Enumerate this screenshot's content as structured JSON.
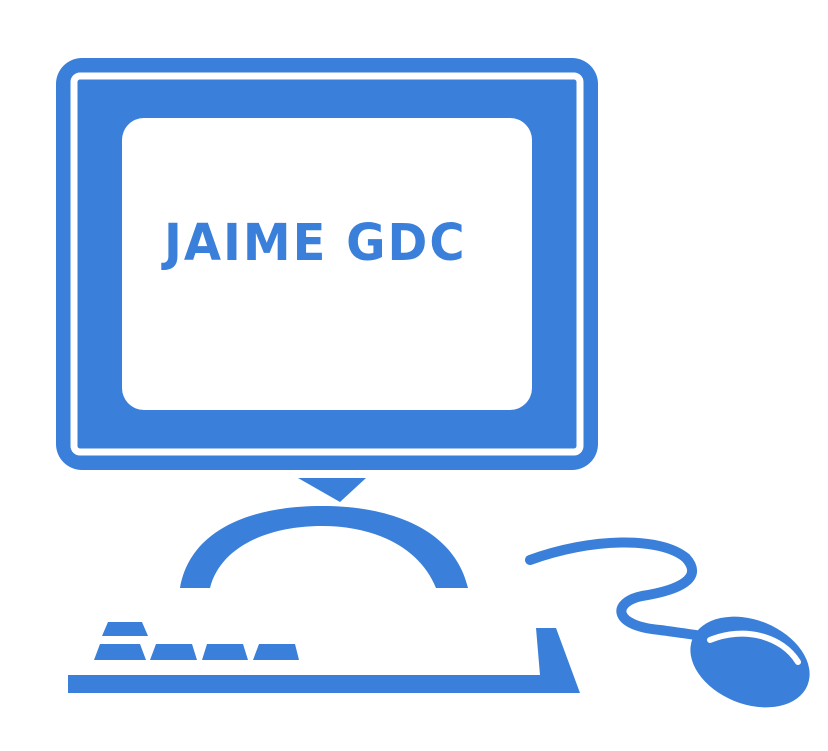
{
  "logo": {
    "text": "JAIME GDC"
  },
  "colors": {
    "primary": "#3a7fd9",
    "background": "#ffffff",
    "screen": "#ffffff"
  },
  "icons": {
    "illustration": "desktop-computer-icon"
  }
}
